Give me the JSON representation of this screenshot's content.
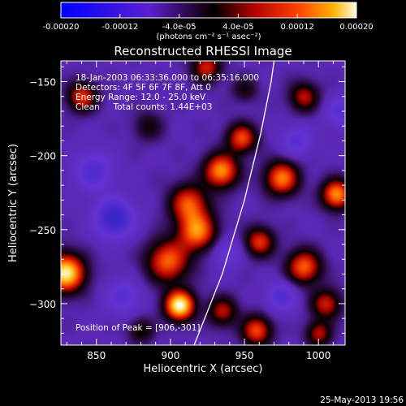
{
  "chart_data": {
    "type": "heatmap",
    "title": "Reconstructed RHESSI Image",
    "xlabel": "Heliocentric X (arcsec)",
    "ylabel": "Heliocentric Y (arcsec)",
    "xlim": [
      826,
      1018
    ],
    "ylim": [
      -328,
      -136
    ],
    "x_ticks": [
      {
        "value": 850,
        "label": "850"
      },
      {
        "value": 900,
        "label": "900"
      },
      {
        "value": 950,
        "label": "950"
      },
      {
        "value": 1000,
        "label": "1000"
      }
    ],
    "y_ticks": [
      {
        "value": -150,
        "label": "−150"
      },
      {
        "value": -200,
        "label": "−200"
      },
      {
        "value": -250,
        "label": "−250"
      },
      {
        "value": -300,
        "label": "−300"
      }
    ],
    "colorbar": {
      "range": [
        -0.0002,
        0.0002
      ],
      "ticks": [
        {
          "value": -0.0002,
          "label": "-0.00020"
        },
        {
          "value": -0.00012,
          "label": "-0.00012"
        },
        {
          "value": -4e-05,
          "label": "-4.0e-05"
        },
        {
          "value": 4e-05,
          "label": "4.0e-05"
        },
        {
          "value": 0.00012,
          "label": "0.00012"
        },
        {
          "value": 0.0002,
          "label": "0.00020"
        }
      ],
      "unit_label": "(photons cm⁻² s⁻¹ asec⁻²)"
    },
    "annotations": [
      "18-Jan-2003 06:33:36.000 to 06:35:16.000",
      "Detectors: 4F 5F 6F 7F 8F, Att 0",
      "Energy Range: 12.0 - 25.0 keV",
      "Clean     Total counts: 1.44E+03"
    ],
    "peak_label": "Position of Peak = [906,-301]",
    "peak_position": [
      906,
      -301
    ],
    "limb_curve": [
      [
        916,
        -328
      ],
      [
        935,
        -280
      ],
      [
        950,
        -230
      ],
      [
        961,
        -185
      ],
      [
        968,
        -150
      ],
      [
        970,
        -136
      ]
    ],
    "blobs": [
      {
        "x": 906,
        "y": -301,
        "amp": 1.0,
        "r": 7
      },
      {
        "x": 829,
        "y": -279,
        "amp": 0.95,
        "r": 9
      },
      {
        "x": 898,
        "y": -271,
        "amp": 0.65,
        "r": 10
      },
      {
        "x": 918,
        "y": -251,
        "amp": 0.7,
        "r": 9
      },
      {
        "x": 912,
        "y": -232,
        "amp": 0.6,
        "r": 9
      },
      {
        "x": 934,
        "y": -210,
        "amp": 0.75,
        "r": 8
      },
      {
        "x": 948,
        "y": -188,
        "amp": 0.6,
        "r": 7
      },
      {
        "x": 840,
        "y": -160,
        "amp": 0.55,
        "r": 7
      },
      {
        "x": 924,
        "y": -140,
        "amp": 0.5,
        "r": 7
      },
      {
        "x": 975,
        "y": -215,
        "amp": 0.7,
        "r": 8
      },
      {
        "x": 1012,
        "y": -226,
        "amp": 0.75,
        "r": 7
      },
      {
        "x": 990,
        "y": -160,
        "amp": 0.45,
        "r": 7
      },
      {
        "x": 960,
        "y": -258,
        "amp": 0.55,
        "r": 7
      },
      {
        "x": 990,
        "y": -275,
        "amp": 0.65,
        "r": 8
      },
      {
        "x": 1005,
        "y": -300,
        "amp": 0.5,
        "r": 7
      },
      {
        "x": 935,
        "y": -305,
        "amp": 0.45,
        "r": 7
      },
      {
        "x": 958,
        "y": -318,
        "amp": 0.6,
        "r": 7
      },
      {
        "x": 1000,
        "y": -320,
        "amp": 0.45,
        "r": 6
      },
      {
        "x": 880,
        "y": -318,
        "amp": 0.3,
        "r": 6
      },
      {
        "x": 885,
        "y": -180,
        "amp": 0.25,
        "r": 7
      },
      {
        "x": 950,
        "y": -155,
        "amp": 0.25,
        "r": 6
      },
      {
        "x": 862,
        "y": -242,
        "amp": -0.55,
        "r": 9
      },
      {
        "x": 848,
        "y": -210,
        "amp": -0.35,
        "r": 9
      },
      {
        "x": 868,
        "y": -295,
        "amp": -0.3,
        "r": 8
      },
      {
        "x": 975,
        "y": -295,
        "amp": -0.35,
        "r": 7
      },
      {
        "x": 985,
        "y": -190,
        "amp": -0.3,
        "r": 7
      },
      {
        "x": 938,
        "y": -265,
        "amp": -0.25,
        "r": 7
      },
      {
        "x": 1015,
        "y": -170,
        "amp": -0.3,
        "r": 7
      }
    ]
  },
  "footer": {
    "timestamp": "25-May-2013 19:56"
  }
}
